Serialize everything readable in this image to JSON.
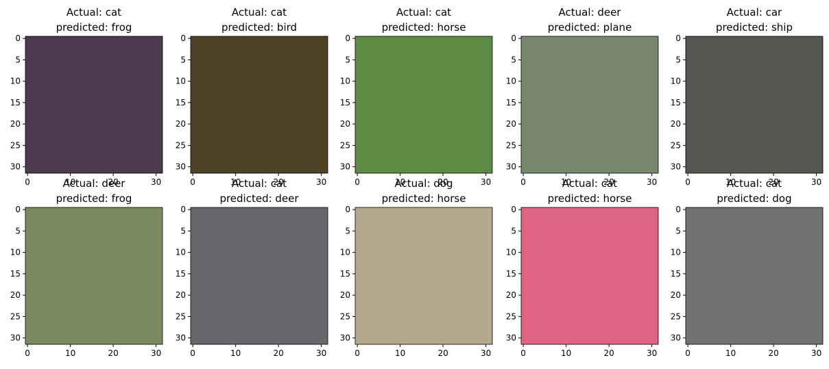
{
  "chart_data": [
    {
      "type": "image",
      "title": "Actual: cat",
      "subtitle": "predicted:  frog",
      "color": "#4b3a4e",
      "xlim": [
        -0.5,
        31.5
      ],
      "ylim": [
        31.5,
        -0.5
      ],
      "xticks": [
        0,
        10,
        20,
        30
      ],
      "yticks": [
        0,
        5,
        10,
        15,
        20,
        25,
        30
      ]
    },
    {
      "type": "image",
      "title": "Actual: cat",
      "subtitle": "predicted:  bird",
      "color": "#4d4226",
      "xlim": [
        -0.5,
        31.5
      ],
      "ylim": [
        31.5,
        -0.5
      ],
      "xticks": [
        0,
        10,
        20,
        30
      ],
      "yticks": [
        0,
        5,
        10,
        15,
        20,
        25,
        30
      ]
    },
    {
      "type": "image",
      "title": "Actual: cat",
      "subtitle": "predicted:  horse",
      "color": "#5e8b44",
      "xlim": [
        -0.5,
        31.5
      ],
      "ylim": [
        31.5,
        -0.5
      ],
      "xticks": [
        0,
        10,
        20,
        30
      ],
      "yticks": [
        0,
        5,
        10,
        15,
        20,
        25,
        30
      ]
    },
    {
      "type": "image",
      "title": "Actual: deer",
      "subtitle": "predicted:  plane",
      "color": "#76876e",
      "xlim": [
        -0.5,
        31.5
      ],
      "ylim": [
        31.5,
        -0.5
      ],
      "xticks": [
        0,
        10,
        20,
        30
      ],
      "yticks": [
        0,
        5,
        10,
        15,
        20,
        25,
        30
      ]
    },
    {
      "type": "image",
      "title": "Actual: car",
      "subtitle": "predicted:  ship",
      "color": "#56554f",
      "xlim": [
        -0.5,
        31.5
      ],
      "ylim": [
        31.5,
        -0.5
      ],
      "xticks": [
        0,
        10,
        20,
        30
      ],
      "yticks": [
        0,
        5,
        10,
        15,
        20,
        25,
        30
      ]
    },
    {
      "type": "image",
      "title": "Actual: deer",
      "subtitle": "predicted:  frog",
      "color": "#7c8a60",
      "xlim": [
        -0.5,
        31.5
      ],
      "ylim": [
        31.5,
        -0.5
      ],
      "xticks": [
        0,
        10,
        20,
        30
      ],
      "yticks": [
        0,
        5,
        10,
        15,
        20,
        25,
        30
      ]
    },
    {
      "type": "image",
      "title": "Actual: cat",
      "subtitle": "predicted:  deer",
      "color": "#66676a",
      "xlim": [
        -0.5,
        31.5
      ],
      "ylim": [
        31.5,
        -0.5
      ],
      "xticks": [
        0,
        10,
        20,
        30
      ],
      "yticks": [
        0,
        5,
        10,
        15,
        20,
        25,
        30
      ]
    },
    {
      "type": "image",
      "title": "Actual: dog",
      "subtitle": "predicted:  horse",
      "color": "#b4a88e",
      "xlim": [
        -0.5,
        31.5
      ],
      "ylim": [
        31.5,
        -0.5
      ],
      "xticks": [
        0,
        10,
        20,
        30
      ],
      "yticks": [
        0,
        5,
        10,
        15,
        20,
        25,
        30
      ]
    },
    {
      "type": "image",
      "title": "Actual: cat",
      "subtitle": "predicted:  horse",
      "color": "#df6384",
      "xlim": [
        -0.5,
        31.5
      ],
      "ylim": [
        31.5,
        -0.5
      ],
      "xticks": [
        0,
        10,
        20,
        30
      ],
      "yticks": [
        0,
        5,
        10,
        15,
        20,
        25,
        30
      ]
    },
    {
      "type": "image",
      "title": "Actual: cat",
      "subtitle": "predicted:  dog",
      "color": "#6f7270",
      "xlim": [
        -0.5,
        31.5
      ],
      "ylim": [
        31.5,
        -0.5
      ],
      "xticks": [
        0,
        10,
        20,
        30
      ],
      "yticks": [
        0,
        5,
        10,
        15,
        20,
        25,
        30
      ]
    }
  ]
}
